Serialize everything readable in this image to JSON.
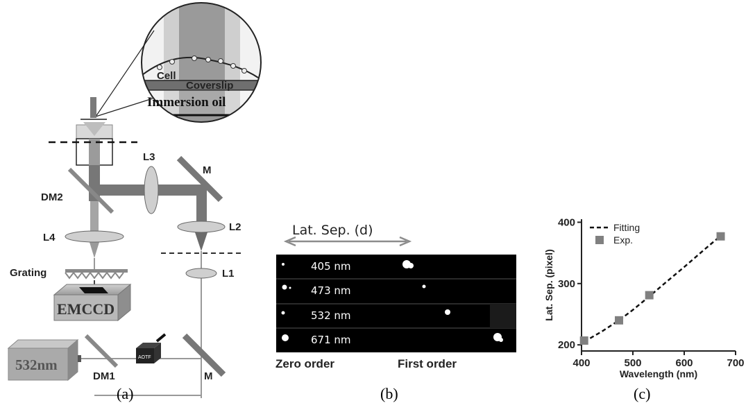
{
  "panel_a": {
    "caption": "(a)",
    "labels": {
      "l3": "L3",
      "m_top": "M",
      "dm2": "DM2",
      "l2": "L2",
      "l4": "L4",
      "l1": "L1",
      "grating": "Grating",
      "emccd": "EMCCD",
      "laser": "532nm",
      "dm1": "DM1",
      "aotf": "AOTF",
      "m_bottom": "M"
    },
    "inset": {
      "cell": "Cell",
      "coverslip": "Coverslip",
      "immersion_oil": "Immersion oil"
    }
  },
  "panel_b": {
    "caption": "(b)",
    "separation_label": "Lat. Sep. (d)",
    "zero_order": "Zero order",
    "first_order": "First order",
    "rows": [
      {
        "label": "405 nm"
      },
      {
        "label": "473 nm"
      },
      {
        "label": "532 nm"
      },
      {
        "label": "671 nm"
      }
    ]
  },
  "panel_c": {
    "caption": "(c)"
  },
  "chart_data": {
    "type": "scatter",
    "xlabel": "Wavelength (nm)",
    "ylabel": "Lat. Sep. (pixel)",
    "xlim": [
      400,
      700
    ],
    "ylim": [
      190,
      405
    ],
    "xticks": [
      400,
      500,
      600,
      700
    ],
    "yticks": [
      200,
      300,
      400
    ],
    "legend_position": "top-left",
    "series": [
      {
        "name": "Exp.",
        "kind": "markers",
        "color": "#808080",
        "x": [
          405,
          473,
          532,
          671
        ],
        "y": [
          207,
          240,
          281,
          377
        ]
      },
      {
        "name": "Fitting",
        "kind": "dashed-line",
        "color": "#111111",
        "x": [
          405,
          440,
          473,
          500,
          532,
          560,
          600,
          640,
          671
        ],
        "y": [
          205,
          222,
          240,
          257,
          279,
          299,
          327,
          356,
          378
        ]
      }
    ]
  }
}
